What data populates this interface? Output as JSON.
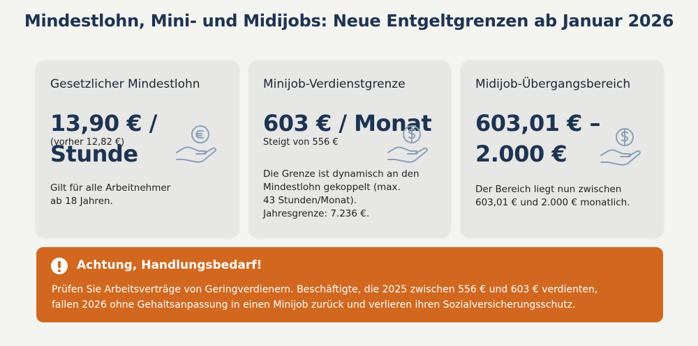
{
  "header": {
    "title": "Mindestlohn, Mini- und Midijobs: Neue Entgeltgrenzen ab Januar 2026"
  },
  "cards": [
    {
      "title": "Gesetzlicher Mindestlohn",
      "value": [
        "13,90 € / Stunde"
      ],
      "sub": "(vorher 12,82 €)",
      "body": [
        "Gilt für alle Arbeitnehmer",
        "ab 18 Jahren."
      ]
    },
    {
      "title": "Minijob-Verdienstgrenze",
      "value": [
        "603 € / Monat"
      ],
      "sub": "Steigt von 556 €",
      "body": [
        "Die Grenze ist dynamisch an den",
        "Mindestlohn gekoppelt (max.",
        "43 Stunden/Monat).",
        "Jahresgrenze: 7.236 €."
      ]
    },
    {
      "title": "Midijob-Übergangsbereich",
      "value": [
        "603,01 € –",
        "2.000 €"
      ],
      "body": [
        "Der Bereich liegt nun zwischen",
        "603,01 € und 2.000 € monatlich."
      ]
    }
  ],
  "alert": {
    "title": "Achtung, Handlungsbedarf!",
    "text": [
      "Prüfen Sie Arbeitsverträge von Geringverdienern. Beschäftigte, die 2025 zwischen 556 € und 603 € verdienten,",
      "fallen 2026 ohne Gehaltsanpassung in einen Minijob zurück und verlieren ihren Sozialversicherungsschutz."
    ]
  }
}
